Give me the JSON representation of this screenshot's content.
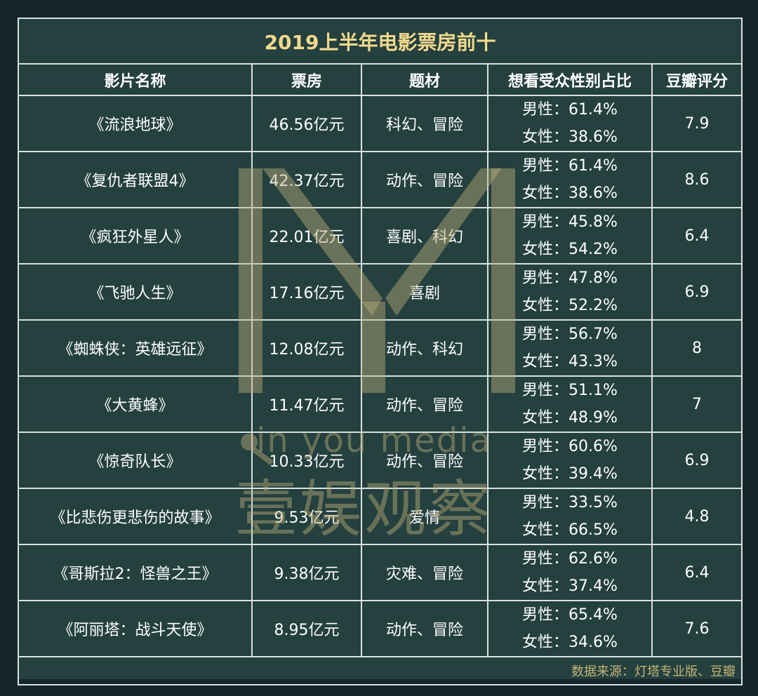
{
  "title": "2019上半年电影票房前十",
  "headers": [
    "影片名称",
    "票房",
    "题材",
    "想看受众性别占比",
    "豆瓣评分"
  ],
  "rows": [
    [
      "《流浪地球》",
      "46.56亿元",
      "科幻、冒险",
      "男性：61.4%",
      "女性：38.6%",
      "7.9"
    ],
    [
      "《复仇者联盟4》",
      "42.37亿元",
      "动作、冒险",
      "男性：61.4%",
      "女性：38.6%",
      "8.6"
    ],
    [
      "《疯狂外星人》",
      "22.01亿元",
      "喜剧、科幻",
      "男性：45.8%",
      "女性：54.2%",
      "6.4"
    ],
    [
      "《飞驰人生》",
      "17.16亿元",
      "喜剧",
      "男性：47.8%",
      "女性：52.2%",
      "6.9"
    ],
    [
      "《蜘蛛侠：英雄远征》",
      "12.08亿元",
      "动作、科幻",
      "男性：56.7%",
      "女性：43.3%",
      "8"
    ],
    [
      "《大黄蜂》",
      "11.47亿元",
      "动作、冒险",
      "男性：51.1%",
      "女性：48.9%",
      "7"
    ],
    [
      "《惊奇队长》",
      "10.33亿元",
      "动作、冒险",
      "男性：60.6%",
      "女性：39.4%",
      "6.9"
    ],
    [
      "《比悲伤更悲伤的故事》",
      "9.53亿元",
      "爱情",
      "男性：33.5%",
      "女性：66.5%",
      "4.8"
    ],
    [
      "《哥斯拉2：怪兽之王》",
      "9.38亿元",
      "灾难、冒险",
      "男性：62.6%",
      "女性：37.4%",
      "6.4"
    ],
    [
      "《阿丽塔：战斗天使》",
      "8.95亿元",
      "动作、冒险",
      "男性：65.4%",
      "女性：34.6%",
      "7.6"
    ]
  ],
  "source": "数据来源：灯塔专业版、豆瓣",
  "watermark": {
    "en": "in you media",
    "cn": "壹娱观察"
  }
}
